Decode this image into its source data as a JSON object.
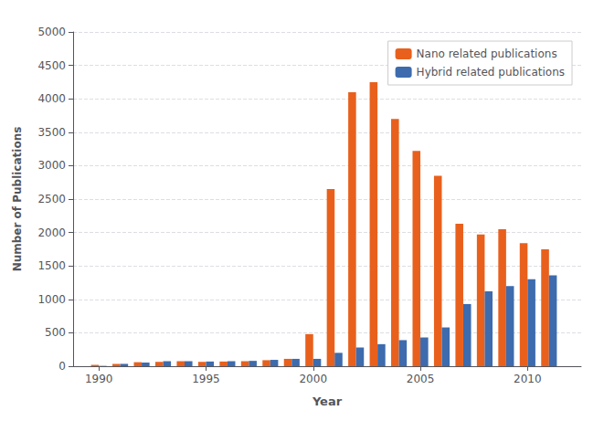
{
  "chart_data": {
    "type": "bar",
    "x": [
      1990,
      1991,
      1992,
      1993,
      1994,
      1995,
      1996,
      1997,
      1998,
      1999,
      2000,
      2001,
      2002,
      2003,
      2004,
      2005,
      2006,
      2007,
      2008,
      2009,
      2010,
      2011
    ],
    "series": [
      {
        "name": "Nano related publications",
        "color": "#E8601C",
        "values": [
          20,
          35,
          60,
          65,
          75,
          65,
          70,
          75,
          90,
          110,
          480,
          2650,
          4100,
          4250,
          3700,
          3220,
          2850,
          2130,
          1970,
          2050,
          1840,
          1750
        ]
      },
      {
        "name": "Hybrid related publications",
        "color": "#3D6BAD",
        "values": [
          5,
          35,
          55,
          75,
          75,
          70,
          75,
          80,
          95,
          110,
          110,
          200,
          280,
          330,
          390,
          430,
          580,
          930,
          1120,
          1200,
          1300,
          1360
        ]
      }
    ],
    "x_label": "Year",
    "y_label": "Number of Publications",
    "xlim": [
      1988.8,
      2012.5
    ],
    "xticks": [
      1990,
      1995,
      2000,
      2005,
      2010
    ],
    "ylim": [
      0,
      5000
    ],
    "yticks": [
      0,
      500,
      1000,
      1500,
      2000,
      2500,
      3000,
      3500,
      4000,
      4500,
      5000
    ],
    "grid": true,
    "legend": "upper right"
  }
}
